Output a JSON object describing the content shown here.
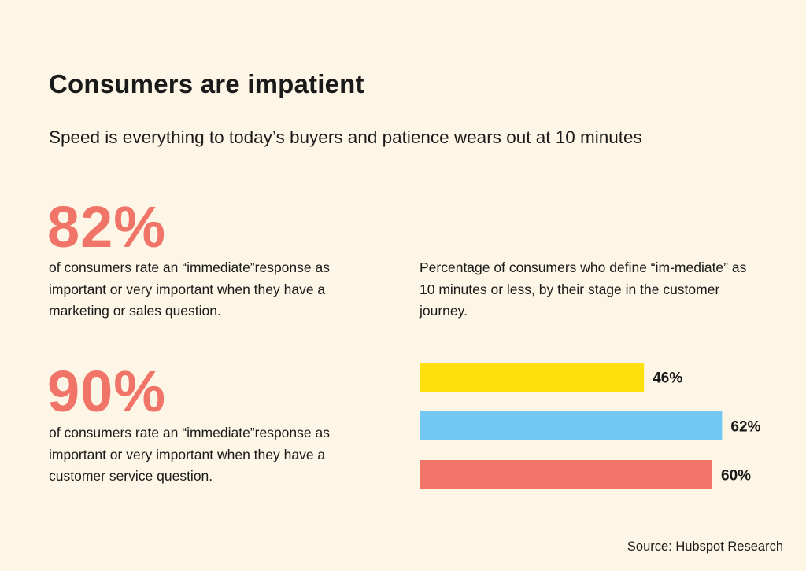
{
  "colors": {
    "background": "#fdf6e6",
    "text": "#1a1a1a",
    "accent": "#f07467",
    "bar_yellow": "#fde00e",
    "bar_blue": "#72c8f3",
    "bar_coral": "#f07467"
  },
  "header": {
    "title": "Consumers are impatient",
    "subtitle": "Speed is everything to today’s buyers and patience wears out at 10 minutes"
  },
  "stats": [
    {
      "value": "82%",
      "description": "of consumers rate an “immediate”response as important or very important when they have a marketing or sales question."
    },
    {
      "value": "90%",
      "description": "of consumers rate an “immediate”response as important or very important when they have a customer service question."
    }
  ],
  "chart_caption": "Percentage of consumers who define “im-mediate” as 10 minutes or less, by their stage in the customer journey.",
  "chart_data": {
    "type": "bar",
    "orientation": "horizontal",
    "values": [
      46,
      62,
      60
    ],
    "labels": [
      "46%",
      "62%",
      "60%"
    ],
    "colors": [
      "#fde00e",
      "#72c8f3",
      "#f07467"
    ],
    "xlim": [
      0,
      100
    ],
    "grid": false,
    "legend": "none"
  },
  "footer": {
    "source": "Source: Hubspot Research"
  }
}
